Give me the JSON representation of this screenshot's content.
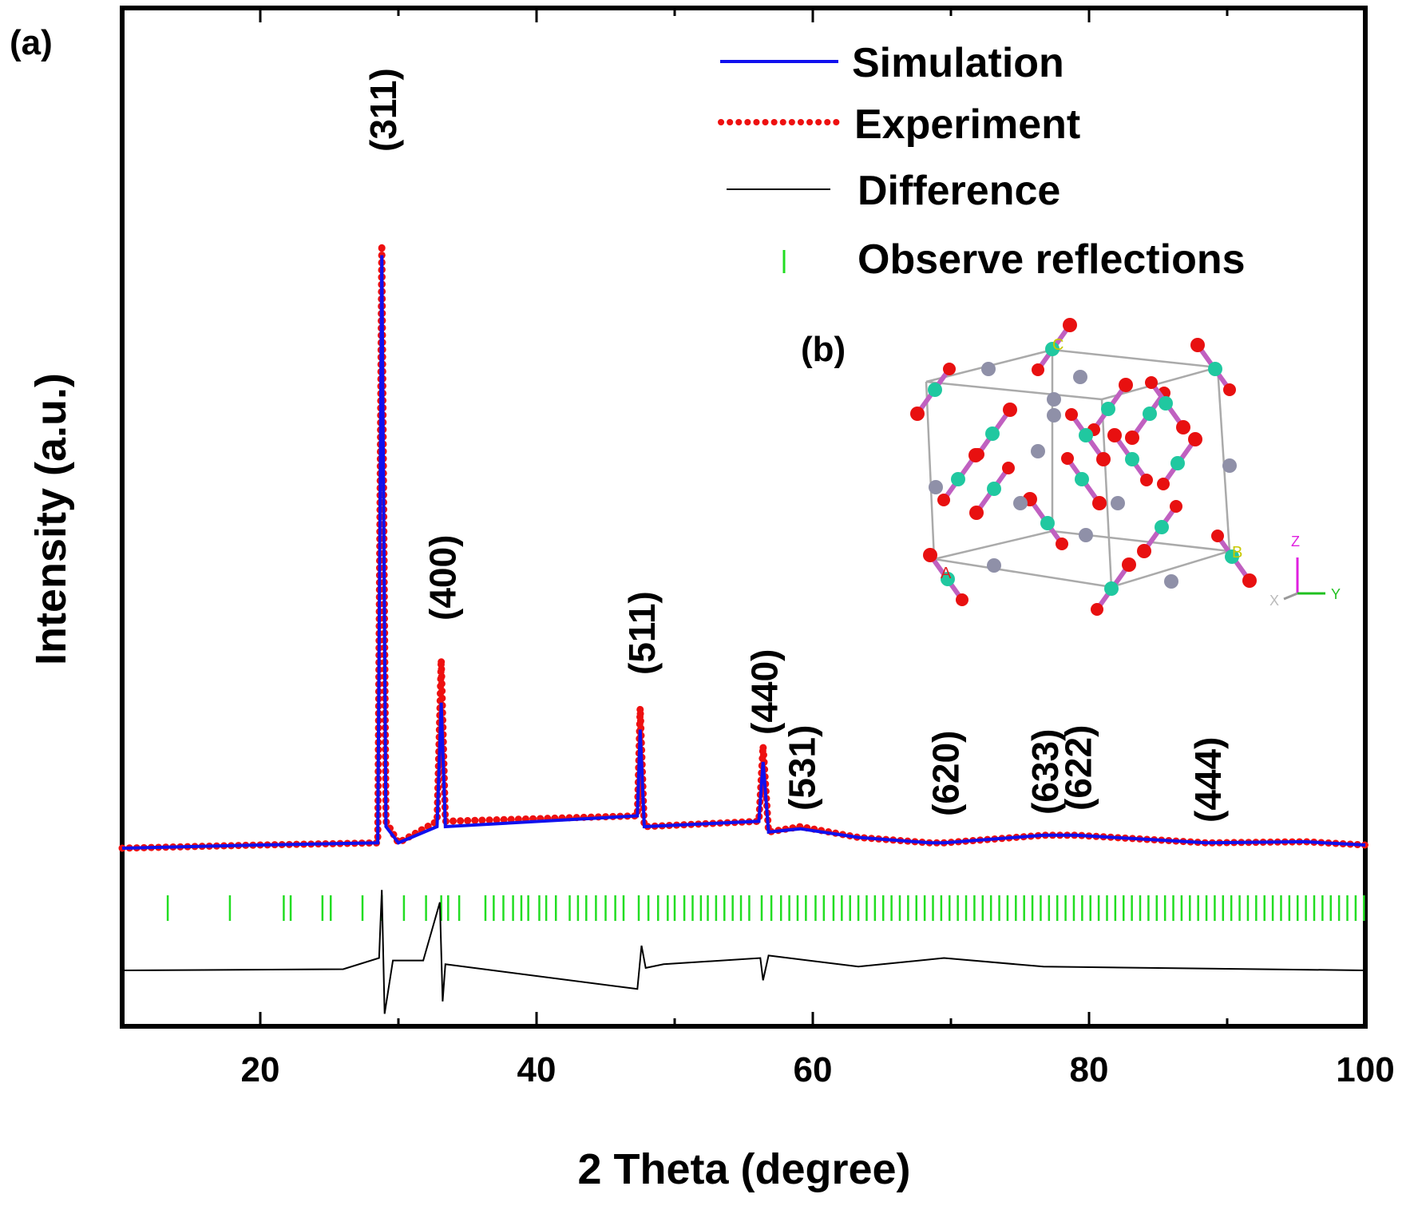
{
  "panel_labels": {
    "a": "(a)",
    "b": "(b)"
  },
  "chart_data": {
    "type": "line",
    "xlabel": "2 Theta (degree)",
    "ylabel": "Intensity (a.u.)",
    "xlim": [
      10,
      100
    ],
    "x_ticks": [
      20,
      40,
      60,
      80,
      100
    ],
    "y_ticks_shown": false,
    "grid": false,
    "legend_position": "top-right",
    "series": [
      {
        "name": "Simulation",
        "color": "#1010ee",
        "style": "solid",
        "x": [
          10,
          20,
          28.5,
          28.8,
          29.1,
          30,
          32.8,
          33.1,
          33.4,
          47.3,
          47.5,
          47.8,
          56.1,
          56.4,
          56.8,
          59.1,
          63.3,
          68.5,
          69.5,
          76.7,
          79.1,
          88.5,
          95.6,
          100
        ],
        "values": [
          0,
          0.03,
          0.05,
          5.5,
          0.2,
          0.05,
          0.2,
          1.35,
          0.2,
          0.3,
          1.1,
          0.2,
          0.25,
          0.8,
          0.15,
          0.18,
          0.1,
          0.05,
          0.05,
          0.12,
          0.12,
          0.05,
          0.06,
          0.03
        ]
      },
      {
        "name": "Experiment",
        "color": "#ee1010",
        "style": "dotted",
        "x": [
          10,
          20,
          28.5,
          28.8,
          29.1,
          30,
          32.8,
          33.1,
          33.4,
          47.3,
          47.5,
          47.8,
          56.1,
          56.4,
          56.8,
          59.1,
          63.3,
          68.5,
          69.5,
          76.7,
          79.1,
          88.5,
          95.6,
          100
        ],
        "values": [
          0,
          0.03,
          0.05,
          5.6,
          0.25,
          0.05,
          0.25,
          1.75,
          0.25,
          0.3,
          1.3,
          0.2,
          0.25,
          0.95,
          0.15,
          0.2,
          0.1,
          0.05,
          0.05,
          0.12,
          0.12,
          0.05,
          0.06,
          0.03
        ]
      },
      {
        "name": "Difference",
        "color": "#000000",
        "style": "solid",
        "x": [
          10,
          26,
          28.6,
          28.8,
          29.0,
          29.6,
          31.8,
          33.0,
          33.2,
          33.4,
          47.3,
          47.6,
          47.9,
          49.2,
          56.2,
          56.4,
          56.8,
          63.3,
          69.5,
          76.7,
          100
        ],
        "values": [
          0,
          0.01,
          0.1,
          0.65,
          -0.35,
          0.08,
          0.08,
          0.55,
          -0.25,
          0.05,
          -0.15,
          0.2,
          0.02,
          0.05,
          0.1,
          -0.08,
          0.12,
          0.03,
          0.1,
          0.03,
          0
        ]
      },
      {
        "name": "Observe reflections",
        "color": "#22dd22",
        "style": "ticks",
        "x": [
          13.3,
          17.8,
          21.7,
          22.2,
          24.5,
          25.1,
          27.4,
          28.8,
          30.4,
          32.0,
          33.1,
          33.6,
          34.4,
          36.3,
          36.9,
          37.6,
          38.3,
          38.9,
          39.4,
          40.2,
          40.7,
          41.4,
          42.4,
          43.0,
          43.6,
          44.3,
          45.0,
          45.7,
          46.3,
          47.4,
          48.1,
          48.8,
          49.5,
          50.0,
          50.7,
          51.3,
          51.9,
          52.4,
          53.0,
          53.6,
          54.2,
          54.8,
          55.4,
          56.3,
          57.0,
          57.7,
          58.3,
          58.9,
          59.5,
          60.2,
          60.8,
          61.5,
          62.1,
          62.7,
          63.3,
          63.9,
          64.5,
          65.1,
          65.7,
          66.3,
          66.9,
          67.5,
          68.1,
          68.7,
          69.3,
          69.9,
          70.5,
          71.1,
          71.7,
          72.3,
          72.9,
          73.5,
          74.1,
          74.7,
          75.3,
          75.9,
          76.5,
          77.1,
          77.7,
          78.3,
          78.9,
          79.5,
          80.1,
          80.7,
          81.3,
          81.9,
          82.5,
          83.1,
          83.7,
          84.3,
          84.9,
          85.5,
          86.1,
          86.7,
          87.3,
          87.9,
          88.5,
          89.1,
          89.7,
          90.3,
          90.9,
          91.5,
          92.1,
          92.7,
          93.3,
          93.9,
          94.5,
          95.1,
          95.7,
          96.3,
          96.9,
          97.5,
          98.1,
          98.7,
          99.3,
          99.9
        ]
      }
    ],
    "annotations": [
      {
        "text": "(311)",
        "x": 28.8
      },
      {
        "text": "(400)",
        "x": 33.1
      },
      {
        "text": "(511)",
        "x": 47.5
      },
      {
        "text": "(440)",
        "x": 56.4
      },
      {
        "text": "(531)",
        "x": 59.1
      },
      {
        "text": "(620)",
        "x": 69.5
      },
      {
        "text": "(633)",
        "x": 76.7
      },
      {
        "text": "(622)",
        "x": 79.1
      },
      {
        "text": "(444)",
        "x": 88.5
      }
    ]
  },
  "inset": {
    "cell_labels": {
      "origin": "C",
      "a": "A",
      "b": "B"
    },
    "axes": {
      "z": "Z",
      "y": "Y",
      "x": "X"
    },
    "colors": {
      "cation": "#8f90a8",
      "anion": "#20c8a0",
      "oxygen": "#e81010",
      "bond": "#c060c0",
      "cell": "#aaaaaa"
    }
  }
}
